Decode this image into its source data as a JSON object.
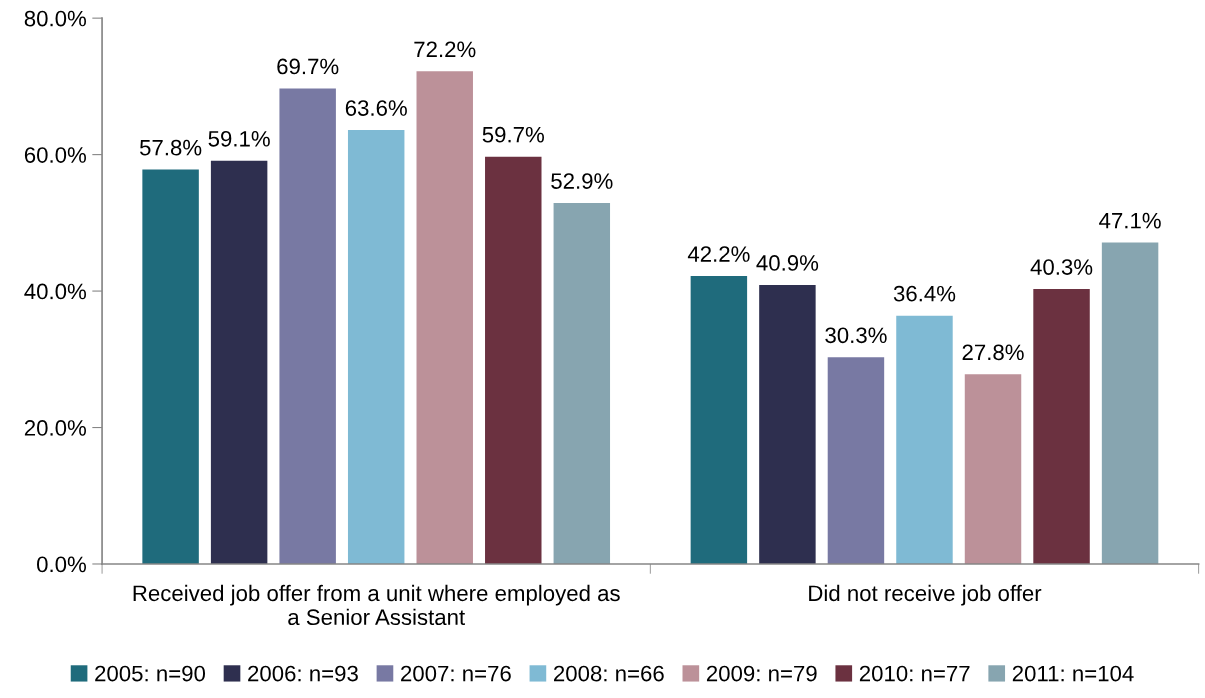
{
  "chart_data": {
    "type": "bar",
    "categories": [
      "Received job offer from a unit where employed as\na Senior Assistant",
      "Did not receive job offer"
    ],
    "series": [
      {
        "name": "2005: n=90",
        "color": "#1f6b7c",
        "values": [
          57.8,
          42.2
        ],
        "value_labels": [
          "57.8%",
          "42.2%"
        ]
      },
      {
        "name": "2006: n=93",
        "color": "#2e2f4f",
        "values": [
          59.1,
          40.9
        ],
        "value_labels": [
          "59.1%",
          "40.9%"
        ]
      },
      {
        "name": "2007: n=76",
        "color": "#7879a3",
        "values": [
          69.7,
          30.3
        ],
        "value_labels": [
          "69.7%",
          "30.3%"
        ]
      },
      {
        "name": "2008: n=66",
        "color": "#7fbad4",
        "values": [
          63.6,
          36.4
        ],
        "value_labels": [
          "63.6%",
          "36.4%"
        ]
      },
      {
        "name": "2009: n=79",
        "color": "#bc9199",
        "values": [
          72.2,
          27.8
        ],
        "value_labels": [
          "72.2%",
          "27.8%"
        ]
      },
      {
        "name": "2010: n=77",
        "color": "#6b3140",
        "values": [
          59.7,
          40.3
        ],
        "value_labels": [
          "59.7%",
          "40.3%"
        ]
      },
      {
        "name": "2011: n=104",
        "color": "#87a5b0",
        "values": [
          52.9,
          47.1
        ],
        "value_labels": [
          "52.9%",
          "47.1%"
        ]
      }
    ],
    "ylim": [
      0,
      80
    ],
    "yticks": [
      {
        "value": 0,
        "label": "0.0%"
      },
      {
        "value": 20,
        "label": "20.0%"
      },
      {
        "value": 40,
        "label": "40.0%"
      },
      {
        "value": 60,
        "label": "60.0%"
      },
      {
        "value": 80,
        "label": "80.0%"
      }
    ],
    "grid": false,
    "legend": "bottom"
  }
}
